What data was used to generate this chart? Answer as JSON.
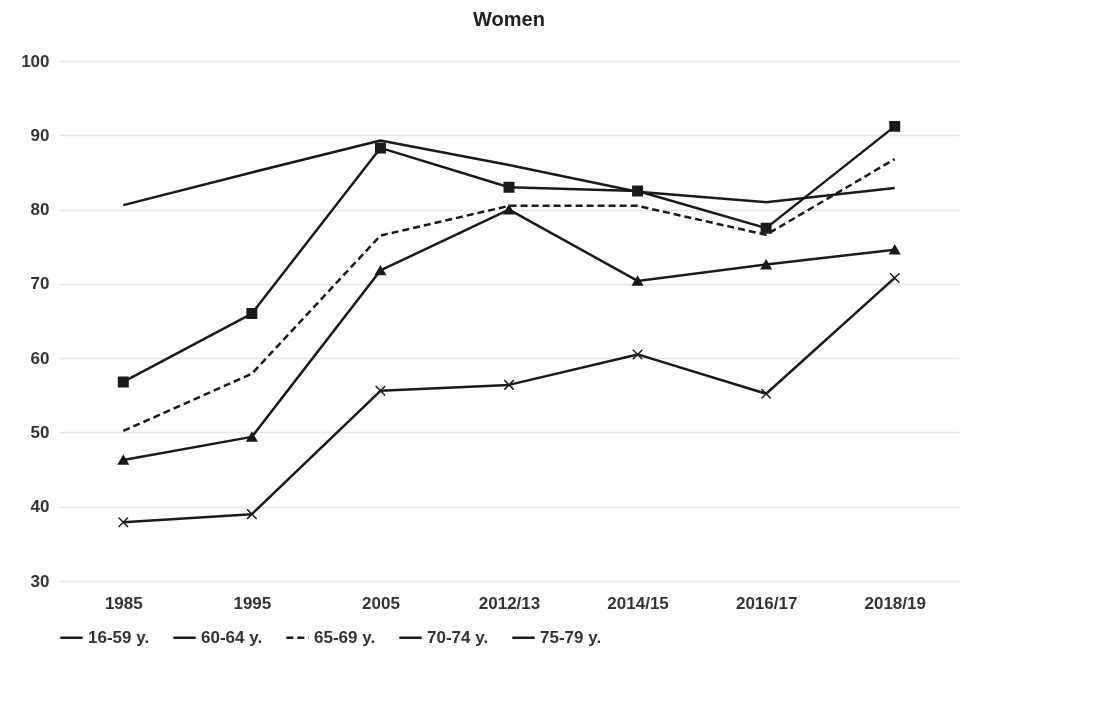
{
  "chart_data": {
    "type": "line",
    "title": "Women",
    "categories": [
      "1985",
      "1995",
      "2005",
      "2012/13",
      "2014/15",
      "2016/17",
      "2018/19"
    ],
    "series": [
      {
        "name": "16-59 y.",
        "color": "#1a1a1a",
        "marker": "none",
        "line_style": "solid",
        "values": [
          80.6,
          85,
          89.3,
          86,
          82.4,
          81,
          82.9
        ]
      },
      {
        "name": "60-64 y.",
        "color": "#1a1a1a",
        "marker": "square",
        "line_style": "solid",
        "values": [
          56.8,
          66,
          88.3,
          83,
          82.5,
          77.5,
          91.2
        ]
      },
      {
        "name": "65-69 y.",
        "color": "#1a1a1a",
        "marker": "none",
        "line_style": "dashed",
        "values": [
          50.2,
          57.9,
          76.5,
          80.5,
          80.5,
          76.6,
          86.8
        ]
      },
      {
        "name": "70-74 y.",
        "color": "#1a1a1a",
        "marker": "triangle",
        "line_style": "solid",
        "values": [
          46.3,
          49.4,
          71.8,
          80,
          70.4,
          72.6,
          74.6
        ]
      },
      {
        "name": "75-79 y.",
        "color": "#1a1a1a",
        "marker": "cross",
        "line_style": "solid",
        "values": [
          37.9,
          39,
          55.6,
          56.4,
          60.5,
          55.2,
          70.8
        ]
      }
    ],
    "ylim": [
      30,
      100
    ],
    "yticks": [
      30,
      40,
      50,
      60,
      70,
      80,
      90,
      100
    ],
    "grid": "y",
    "legend": "bottom"
  }
}
